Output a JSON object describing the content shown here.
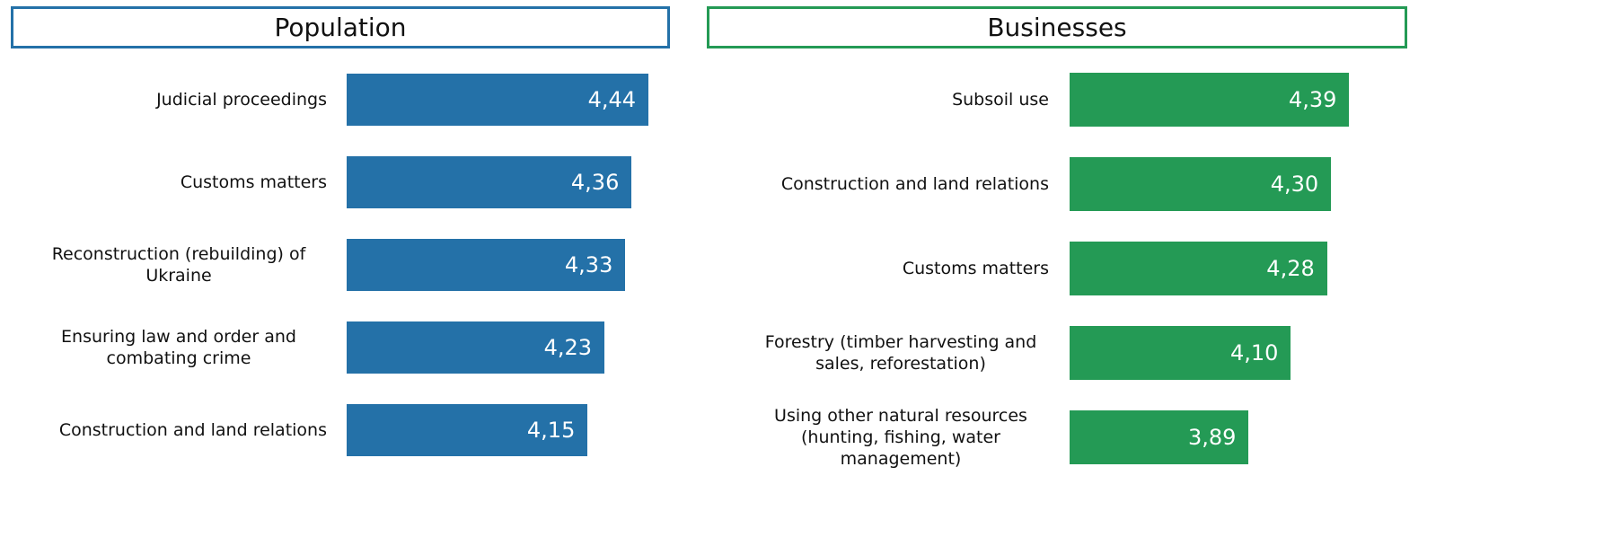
{
  "chart_data": [
    {
      "type": "bar",
      "orientation": "horizontal",
      "title": "Population",
      "color": "#2471a8",
      "categories": [
        "Judicial proceedings",
        "Customs matters",
        "Reconstruction (rebuilding) of Ukraine",
        "Ensuring law and order and combating crime",
        "Construction and land relations"
      ],
      "values": [
        4.44,
        4.36,
        4.33,
        4.23,
        4.15
      ],
      "value_labels": [
        "4,44",
        "4,36",
        "4,33",
        "4,23",
        "4,15"
      ],
      "xlim": [
        3,
        4.5
      ]
    },
    {
      "type": "bar",
      "orientation": "horizontal",
      "title": "Businesses",
      "color": "#249a55",
      "categories": [
        "Subsoil use",
        "Construction and land relations",
        "Customs matters",
        "Forestry (timber harvesting and sales, reforestation)",
        "Using other natural resources (hunting, fishing, water management)"
      ],
      "values": [
        4.39,
        4.3,
        4.28,
        4.1,
        3.89
      ],
      "value_labels": [
        "4,39",
        "4,30",
        "4,28",
        "4,10",
        "3,89"
      ],
      "xlim": [
        3,
        4.5
      ]
    }
  ]
}
